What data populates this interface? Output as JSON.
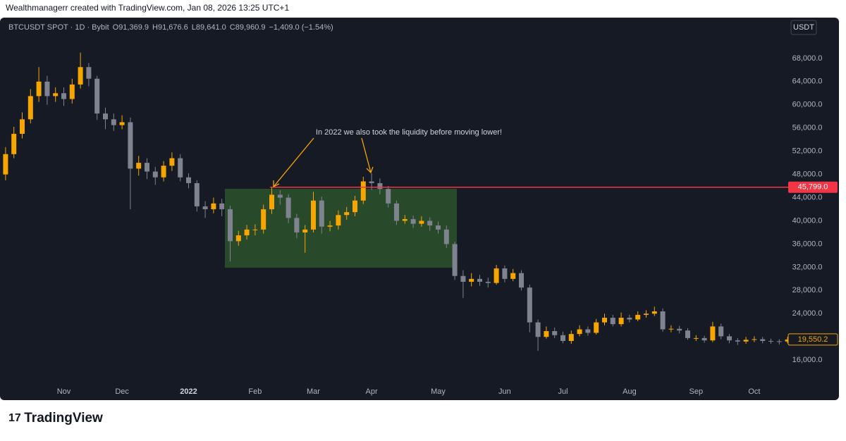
{
  "header": {
    "credit": "Wealthmanagerr created with TradingView.com, Jan 08, 2026 13:25 UTC+1"
  },
  "footer": {
    "logo": "TradingView"
  },
  "chart_data": {
    "type": "candlestick",
    "symbol": "BTCUSDT SPOT · 1D · Bybit",
    "legend": [
      {
        "key": "O",
        "value": "91,369.9"
      },
      {
        "key": "H",
        "value": "91,676.6"
      },
      {
        "key": "L",
        "value": "89,641.0"
      },
      {
        "key": "C",
        "value": "89,960.9"
      }
    ],
    "change": "−1,409.0 (−1.54%)",
    "currency": "USDT",
    "annotation": "In 2022 we also took the liquidity before moving lower!",
    "up_color": "#f7a600",
    "down_color": "#7e838f",
    "level": {
      "value": 45799,
      "label": "45,799.0",
      "color": "#f23645"
    },
    "last_price": {
      "value": 19550.2,
      "label": "19,550.2"
    },
    "ylim": [
      12500,
      72600
    ],
    "yticks": [
      {
        "value": 16000,
        "label": "16,000.0"
      },
      {
        "value": 20000,
        "label": "20,000.0"
      },
      {
        "value": 24000,
        "label": "24,000.0"
      },
      {
        "value": 28000,
        "label": "28,000.0"
      },
      {
        "value": 32000,
        "label": "32,000.0"
      },
      {
        "value": 36000,
        "label": "36,000.0"
      },
      {
        "value": 40000,
        "label": "40,000.0"
      },
      {
        "value": 44000,
        "label": "44,000.0"
      },
      {
        "value": 48000,
        "label": "48,000.0"
      },
      {
        "value": 52000,
        "label": "52,000.0"
      },
      {
        "value": 56000,
        "label": "56,000.0"
      },
      {
        "value": 60000,
        "label": "60,000.0"
      },
      {
        "value": 64000,
        "label": "64,000.0"
      },
      {
        "value": 68000,
        "label": "68,000.0"
      }
    ],
    "categories": [
      null,
      null,
      null,
      null,
      null,
      null,
      null,
      "Nov",
      null,
      null,
      null,
      null,
      null,
      null,
      "Dec",
      null,
      null,
      null,
      null,
      null,
      null,
      null,
      "2022",
      null,
      null,
      null,
      null,
      null,
      null,
      null,
      "Feb",
      null,
      null,
      null,
      null,
      null,
      null,
      "Mar",
      null,
      null,
      null,
      null,
      null,
      null,
      "Apr",
      null,
      null,
      null,
      null,
      null,
      null,
      null,
      "May",
      null,
      null,
      null,
      null,
      null,
      null,
      null,
      "Jun",
      null,
      null,
      null,
      null,
      null,
      null,
      "Jul",
      null,
      null,
      null,
      null,
      null,
      null,
      null,
      "Aug",
      null,
      null,
      null,
      null,
      null,
      null,
      null,
      "Sep",
      null,
      null,
      null,
      null,
      null,
      null,
      "Oct",
      null,
      null,
      null,
      null
    ],
    "open": [
      48000,
      51500,
      55000,
      57500,
      61500,
      64000,
      61500,
      62000,
      61000,
      63500,
      66500,
      64500,
      58500,
      57500,
      56500,
      57000,
      49000,
      50000,
      48500,
      47500,
      49500,
      50800,
      47500,
      46500,
      42500,
      42000,
      43000,
      42000,
      36500,
      37500,
      38500,
      38500,
      42000,
      44500,
      44000,
      40500,
      38000,
      38500,
      43500,
      39000,
      39200,
      41000,
      41500,
      43500,
      46800,
      46500,
      45500,
      43000,
      40000,
      40300,
      39500,
      40000,
      39200,
      38500,
      36000,
      30500,
      29500,
      30000,
      29500,
      29300,
      31800,
      30000,
      31000,
      28500,
      22500,
      20000,
      21000,
      20300,
      19300,
      20500,
      21300,
      20700,
      22500,
      23300,
      22200,
      23300,
      23000,
      23800,
      24000,
      24400,
      21300,
      21400,
      21100,
      19800,
      19800,
      19400,
      21800,
      20100,
      19400,
      19200,
      19500,
      19600,
      19300,
      19250,
      19200
    ],
    "high": [
      52700,
      56200,
      58700,
      62700,
      66500,
      65000,
      63000,
      63000,
      64500,
      69000,
      67200,
      65000,
      59500,
      58500,
      58200,
      57800,
      51200,
      50800,
      49300,
      50300,
      51800,
      51500,
      48200,
      47000,
      43400,
      44000,
      43800,
      42600,
      38300,
      39300,
      39400,
      42800,
      45800,
      45300,
      44600,
      41200,
      39300,
      45000,
      44200,
      40000,
      41800,
      42400,
      44300,
      47600,
      48200,
      47300,
      46000,
      43500,
      41000,
      40900,
      40800,
      40600,
      39900,
      39200,
      36400,
      31500,
      31000,
      30700,
      30200,
      32400,
      32300,
      31700,
      31500,
      29000,
      23000,
      21800,
      21600,
      20900,
      21100,
      22000,
      21800,
      23100,
      24000,
      23800,
      24200,
      23800,
      24400,
      24600,
      25200,
      24900,
      22000,
      21900,
      21500,
      20300,
      20200,
      22600,
      22300,
      20500,
      19800,
      20000,
      20100,
      20000,
      19700,
      19600,
      20000
    ],
    "low": [
      47000,
      50800,
      54200,
      56800,
      60500,
      60000,
      60500,
      59800,
      60200,
      62800,
      63200,
      57400,
      55800,
      55500,
      55800,
      42000,
      47800,
      47200,
      46200,
      46800,
      48600,
      46800,
      45600,
      41600,
      40500,
      41300,
      40800,
      33000,
      35700,
      36800,
      37500,
      37800,
      41200,
      42800,
      39600,
      37000,
      34500,
      38000,
      37800,
      38200,
      38500,
      40200,
      40800,
      42900,
      45300,
      44600,
      42300,
      39300,
      39500,
      38800,
      39000,
      38300,
      37800,
      35300,
      29800,
      26700,
      28700,
      28800,
      28500,
      29000,
      29400,
      29600,
      28000,
      20800,
      17600,
      19700,
      19800,
      18900,
      18800,
      20100,
      20200,
      20400,
      22000,
      21800,
      21800,
      22500,
      22700,
      23300,
      23600,
      20900,
      20800,
      20600,
      19500,
      19300,
      19000,
      19100,
      19600,
      18900,
      18600,
      18800,
      19100,
      18900,
      18800,
      18700,
      18900
    ],
    "close": [
      51500,
      55000,
      57500,
      61500,
      64000,
      61500,
      62000,
      61000,
      63500,
      66500,
      64500,
      58500,
      57500,
      56500,
      57000,
      49000,
      50000,
      48500,
      47500,
      49500,
      50800,
      47500,
      46500,
      42500,
      42000,
      43000,
      42000,
      36500,
      37500,
      38500,
      38500,
      42000,
      44500,
      44000,
      40500,
      38000,
      38500,
      43500,
      39000,
      39200,
      41000,
      41500,
      43500,
      46800,
      46500,
      45500,
      43000,
      40000,
      40300,
      39500,
      40000,
      39200,
      38500,
      36000,
      30500,
      29500,
      30000,
      29500,
      29300,
      31800,
      30000,
      31000,
      28500,
      22500,
      20000,
      21000,
      20300,
      19300,
      20500,
      21300,
      20700,
      22500,
      23300,
      22200,
      23300,
      23000,
      23800,
      24000,
      24400,
      21300,
      21400,
      21100,
      19800,
      19800,
      19400,
      21800,
      20100,
      19400,
      19200,
      19500,
      19600,
      19300,
      19250,
      19200,
      19550
    ]
  }
}
